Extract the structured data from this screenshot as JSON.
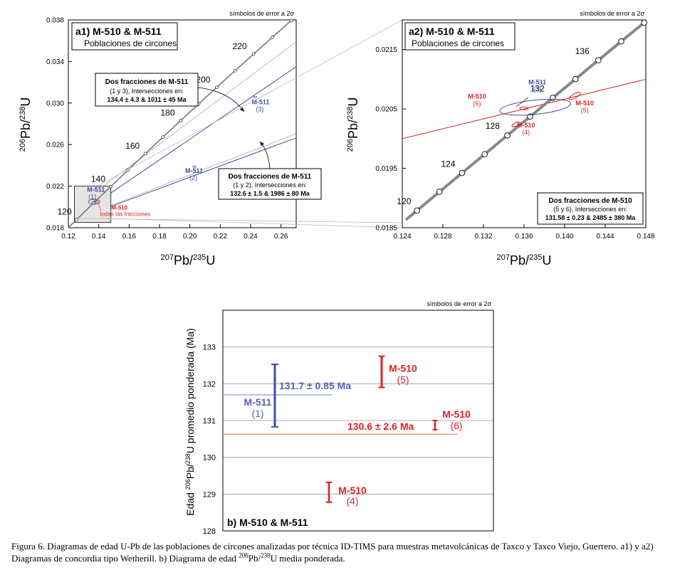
{
  "chart_data": [
    {
      "id": "a1",
      "type": "scatter",
      "title": "a1)  M-510 & M-511",
      "subtitle": "Poblaciones de circones",
      "error_note": "símbolos de error a 2σ",
      "xlabel_parts": [
        "207",
        "Pb/",
        "235",
        "U"
      ],
      "ylabel_parts": [
        "206",
        "Pb/",
        "238",
        "U"
      ],
      "xlim": [
        0.12,
        0.27
      ],
      "ylim": [
        0.018,
        0.038
      ],
      "xticks": [
        "0.12",
        "0.14",
        "0.16",
        "0.18",
        "0.20",
        "0.22",
        "0.24",
        "0.26"
      ],
      "yticks": [
        "0.018",
        "0.022",
        "0.026",
        "0.030",
        "0.034",
        "0.038"
      ],
      "concordia_ages": [
        {
          "label": "120",
          "x": 0.125,
          "y": 0.01879
        },
        {
          "label": "140",
          "x": 0.1472,
          "y": 0.02194
        },
        {
          "label": "160",
          "x": 0.1698,
          "y": 0.02512
        },
        {
          "label": "180",
          "x": 0.1929,
          "y": 0.02831
        },
        {
          "label": "200",
          "x": 0.2163,
          "y": 0.03151
        },
        {
          "label": "220",
          "x": 0.2403,
          "y": 0.0347
        }
      ],
      "discordia": [
        {
          "name": "M-511 (1 y 3)",
          "x": [
            0.128,
            0.27
          ],
          "y": [
            0.01935,
            0.0335
          ]
        },
        {
          "name": "M-511 (1 y 2)",
          "x": [
            0.124,
            0.27
          ],
          "y": [
            0.01875,
            0.02665
          ]
        }
      ],
      "points": [
        {
          "name": "M-511",
          "sub": "(1)",
          "x": 0.137,
          "y": 0.0205
        },
        {
          "name": "M-511",
          "sub": "(2)",
          "x": 0.203,
          "y": 0.02388
        },
        {
          "name": "M-511",
          "sub": "(3)",
          "x": 0.243,
          "y": 0.03058
        },
        {
          "name": "M-510",
          "sub": "todas las fracciones",
          "x": 0.138,
          "y": 0.0205
        }
      ],
      "annotations": [
        {
          "title": "Dos fracciones de M-511",
          "line1": "(1 y 3), Intersecciones en:",
          "line2": "134.4 ± 4.3 & 1011 ± 45 Ma"
        },
        {
          "title": "Dos fracciones de M-511",
          "line1": "(1 y 2), Intersecciones en:",
          "line2": "132.6 ± 1.5 & 1986 ± 80 Ma"
        }
      ]
    },
    {
      "id": "a2",
      "type": "scatter",
      "title": "a2)  M-510 & M-511",
      "subtitle": "Poblaciones de circones",
      "error_note": "símbolos de error a 2σ",
      "xlabel_parts": [
        "207",
        "Pb/",
        "235",
        "U"
      ],
      "ylabel_parts": [
        "206",
        "Pb/",
        "238",
        "U"
      ],
      "xlim": [
        0.124,
        0.148
      ],
      "ylim": [
        0.0185,
        0.022
      ],
      "xticks": [
        "0.124",
        "0.128",
        "0.132",
        "0.136",
        "0.140",
        "0.144",
        "0.148"
      ],
      "yticks": [
        "0.0185",
        "0.0195",
        "0.0205",
        "0.0215"
      ],
      "concordia_ages": [
        {
          "label": "120",
          "x": 0.12536,
          "y": 0.0188
        },
        {
          "label": "124",
          "x": 0.12972,
          "y": 0.01943
        },
        {
          "label": "128",
          "x": 0.1341,
          "y": 0.02007
        },
        {
          "label": "132",
          "x": 0.13851,
          "y": 0.0207
        },
        {
          "label": "136",
          "x": 0.14293,
          "y": 0.02133
        }
      ],
      "discordia": [
        {
          "name": "M-510 (5 y 6)",
          "x": [
            0.124,
            0.148
          ],
          "y": [
            0.02,
            0.021
          ]
        }
      ],
      "points": [
        {
          "name": "M-511",
          "sub": "(1)",
          "x": 0.1371,
          "y": 0.02053
        },
        {
          "name": "M-510",
          "sub": "(6)",
          "x": 0.136,
          "y": 0.02051
        },
        {
          "name": "M-510",
          "sub": "(5)",
          "x": 0.141,
          "y": 0.02072
        },
        {
          "name": "M-510",
          "sub": "(4)",
          "x": 0.1352,
          "y": 0.02024
        }
      ],
      "annotation": {
        "title": "Dos fracciones de M-510",
        "line1": "(5 y 6), Intersecciones en:",
        "line2": "131.58 ± 0.23 & 2485 ± 380 Ma"
      }
    },
    {
      "id": "b",
      "type": "scatter",
      "title": "b)  M-510 & M-511",
      "error_note": "símbolos de error a 2σ",
      "ylabel_parts": [
        "Edad ",
        "206",
        "Pb/",
        "238",
        "U promedio ponderada (Ma)"
      ],
      "ylim": [
        128,
        134
      ],
      "yticks": [
        "128",
        "129",
        "130",
        "131",
        "132",
        "133"
      ],
      "series": [
        {
          "name": "M-511",
          "sub": "(1)",
          "value": 131.68,
          "low": 130.83,
          "high": 132.53
        },
        {
          "name": "M-510",
          "sub": "(5)",
          "value": 132.3,
          "low": 131.9,
          "high": 132.75
        },
        {
          "name": "M-510",
          "sub": "(6)",
          "value": 130.88,
          "low": 130.75,
          "high": 131.0
        },
        {
          "name": "M-510",
          "sub": "(4)",
          "value": 129.05,
          "low": 128.78,
          "high": 129.32
        }
      ],
      "means": [
        {
          "label": "131.7 ± 0.85 Ma",
          "value": 131.7
        },
        {
          "label": "130.6 ± 2.6 Ma",
          "value": 130.63
        }
      ]
    }
  ],
  "caption": {
    "prefix": "Figura 6. Diagramas de edad U-Pb de las poblaciones de circones analizadas por técnica ID-TIMS para muestras metavolcánicas de Taxco y Taxco Viejo, Guerrero. a1) y a2) Diagramas de concordia tipo Wetherill. b) Diagrama de edad ",
    "sup1": "206",
    "mid": "Pb/",
    "sup2": "238",
    "suffix": "U media ponderada."
  },
  "colors": {
    "blue": "#3e4ca8",
    "red": "#dd2222",
    "lightblue": "#9aa6e0",
    "lightred": "#f0a088",
    "gray": "#777777"
  }
}
